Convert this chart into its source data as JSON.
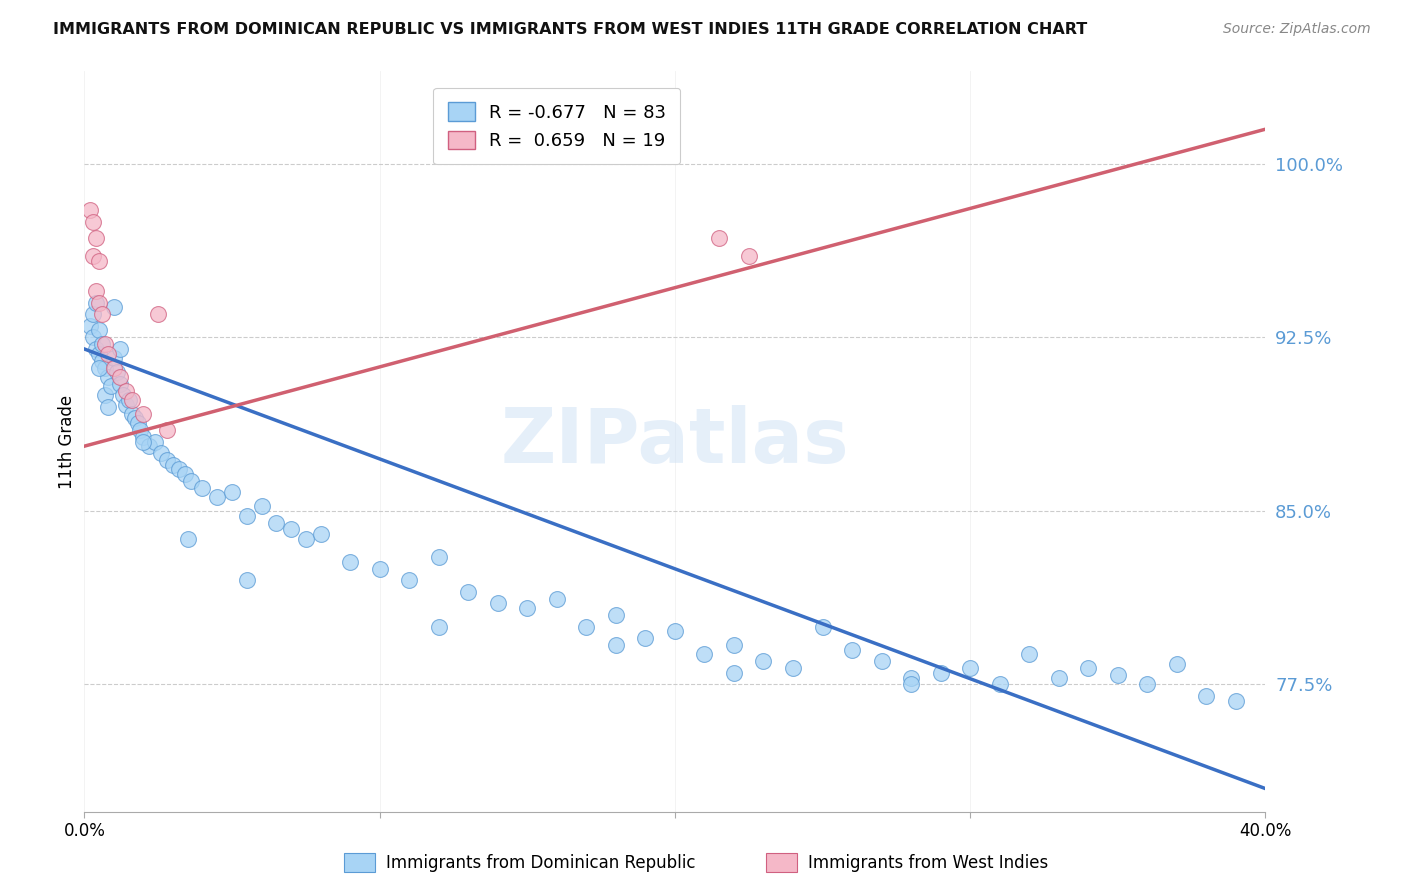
{
  "title": "IMMIGRANTS FROM DOMINICAN REPUBLIC VS IMMIGRANTS FROM WEST INDIES 11TH GRADE CORRELATION CHART",
  "source": "Source: ZipAtlas.com",
  "ylabel": "11th Grade",
  "yticks": [
    0.775,
    0.85,
    0.925,
    1.0
  ],
  "ytick_labels": [
    "77.5%",
    "85.0%",
    "92.5%",
    "100.0%"
  ],
  "xlim": [
    0.0,
    0.4
  ],
  "ylim": [
    0.72,
    1.04
  ],
  "legend_blue_r": "-0.677",
  "legend_blue_n": "83",
  "legend_pink_r": "0.659",
  "legend_pink_n": "19",
  "blue_scatter_color": "#a8d4f5",
  "blue_edge_color": "#5b9bd5",
  "pink_scatter_color": "#f5b8c8",
  "pink_edge_color": "#d06080",
  "blue_line_color": "#3a6fc4",
  "pink_line_color": "#d06070",
  "watermark": "ZIPatlas",
  "blue_line_x0": 0.0,
  "blue_line_x1": 0.4,
  "blue_line_y0": 0.92,
  "blue_line_y1": 0.73,
  "pink_line_x0": 0.0,
  "pink_line_x1": 0.4,
  "pink_line_y0": 0.878,
  "pink_line_y1": 1.015,
  "blue_scatter_x": [
    0.002,
    0.003,
    0.003,
    0.004,
    0.004,
    0.005,
    0.005,
    0.006,
    0.006,
    0.007,
    0.007,
    0.008,
    0.008,
    0.009,
    0.01,
    0.01,
    0.011,
    0.012,
    0.012,
    0.013,
    0.014,
    0.015,
    0.016,
    0.017,
    0.018,
    0.019,
    0.02,
    0.022,
    0.024,
    0.026,
    0.028,
    0.03,
    0.032,
    0.034,
    0.036,
    0.04,
    0.045,
    0.05,
    0.055,
    0.06,
    0.065,
    0.07,
    0.075,
    0.08,
    0.09,
    0.1,
    0.11,
    0.12,
    0.13,
    0.14,
    0.15,
    0.16,
    0.17,
    0.18,
    0.19,
    0.2,
    0.21,
    0.22,
    0.23,
    0.24,
    0.25,
    0.26,
    0.27,
    0.28,
    0.29,
    0.3,
    0.31,
    0.32,
    0.33,
    0.34,
    0.35,
    0.36,
    0.37,
    0.38,
    0.39,
    0.005,
    0.02,
    0.035,
    0.055,
    0.12,
    0.18,
    0.22,
    0.28
  ],
  "blue_scatter_y": [
    0.93,
    0.935,
    0.925,
    0.94,
    0.92,
    0.928,
    0.918,
    0.922,
    0.915,
    0.912,
    0.9,
    0.908,
    0.895,
    0.904,
    0.938,
    0.916,
    0.91,
    0.92,
    0.905,
    0.9,
    0.896,
    0.898,
    0.892,
    0.89,
    0.888,
    0.885,
    0.882,
    0.878,
    0.88,
    0.875,
    0.872,
    0.87,
    0.868,
    0.866,
    0.863,
    0.86,
    0.856,
    0.858,
    0.848,
    0.852,
    0.845,
    0.842,
    0.838,
    0.84,
    0.828,
    0.825,
    0.82,
    0.83,
    0.815,
    0.81,
    0.808,
    0.812,
    0.8,
    0.805,
    0.795,
    0.798,
    0.788,
    0.792,
    0.785,
    0.782,
    0.8,
    0.79,
    0.785,
    0.778,
    0.78,
    0.782,
    0.775,
    0.788,
    0.778,
    0.782,
    0.779,
    0.775,
    0.784,
    0.77,
    0.768,
    0.912,
    0.88,
    0.838,
    0.82,
    0.8,
    0.792,
    0.78,
    0.775
  ],
  "pink_scatter_x": [
    0.002,
    0.003,
    0.003,
    0.004,
    0.004,
    0.005,
    0.005,
    0.006,
    0.007,
    0.008,
    0.01,
    0.012,
    0.014,
    0.016,
    0.02,
    0.025,
    0.028,
    0.215,
    0.225
  ],
  "pink_scatter_y": [
    0.98,
    0.975,
    0.96,
    0.968,
    0.945,
    0.958,
    0.94,
    0.935,
    0.922,
    0.918,
    0.912,
    0.908,
    0.902,
    0.898,
    0.892,
    0.935,
    0.885,
    0.968,
    0.96
  ]
}
